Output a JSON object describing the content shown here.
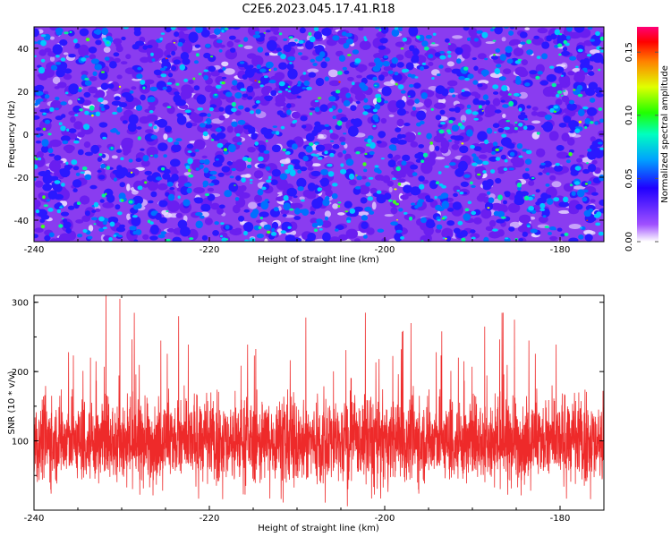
{
  "figure": {
    "title": "C2E6.2023.045.17.41.R18"
  },
  "chart_data": [
    {
      "type": "heatmap",
      "xlabel": "Height of straight line (km)",
      "ylabel": "Frequency (Hz)",
      "xlim": [
        -240,
        -175
      ],
      "ylim": [
        -50,
        50
      ],
      "x_ticks": [
        "-240",
        "-220",
        "-200",
        "-180"
      ],
      "y_ticks": [
        "-40",
        "-20",
        "0",
        "20",
        "40"
      ],
      "description_values": "dense speckle of normalized spectral amplitude, mostly 0.02-0.07, occasional peaks up to ~0.16",
      "colorbar": {
        "label": "Normalized spectral amplitude",
        "range": [
          0,
          0.17
        ],
        "ticks": [
          "0.00",
          "0.05",
          "0.10",
          "0.15"
        ],
        "colors": [
          "#ffffff",
          "#8800ff",
          "#0000ff",
          "#00e0ff",
          "#00ff00",
          "#ffff00",
          "#ff0000",
          "#ff0066"
        ]
      },
      "grid": false
    },
    {
      "type": "line",
      "xlabel": "Height of straight line (km)",
      "ylabel": "SNR (10 * v/v)",
      "xlim": [
        -240,
        -175
      ],
      "ylim": [
        0,
        310
      ],
      "x_ticks": [
        "-240",
        "-220",
        "-200",
        "-180"
      ],
      "y_ticks": [
        "100",
        "200",
        "300"
      ],
      "series": [
        {
          "color": "#ee2a2a",
          "baseline": 100,
          "typical_range": [
            30,
            170
          ],
          "spikes": [
            {
              "x": -231.8,
              "y": 310
            },
            {
              "x": -230.2,
              "y": 305
            },
            {
              "x": -223.5,
              "y": 280
            },
            {
              "x": -209.0,
              "y": 278
            },
            {
              "x": -202.2,
              "y": 285
            },
            {
              "x": -197.0,
              "y": 270
            },
            {
              "x": -193.5,
              "y": 258
            },
            {
              "x": -188.6,
              "y": 265
            },
            {
              "x": -186.5,
              "y": 285
            },
            {
              "x": -185.2,
              "y": 275
            }
          ]
        }
      ],
      "grid": false
    }
  ]
}
